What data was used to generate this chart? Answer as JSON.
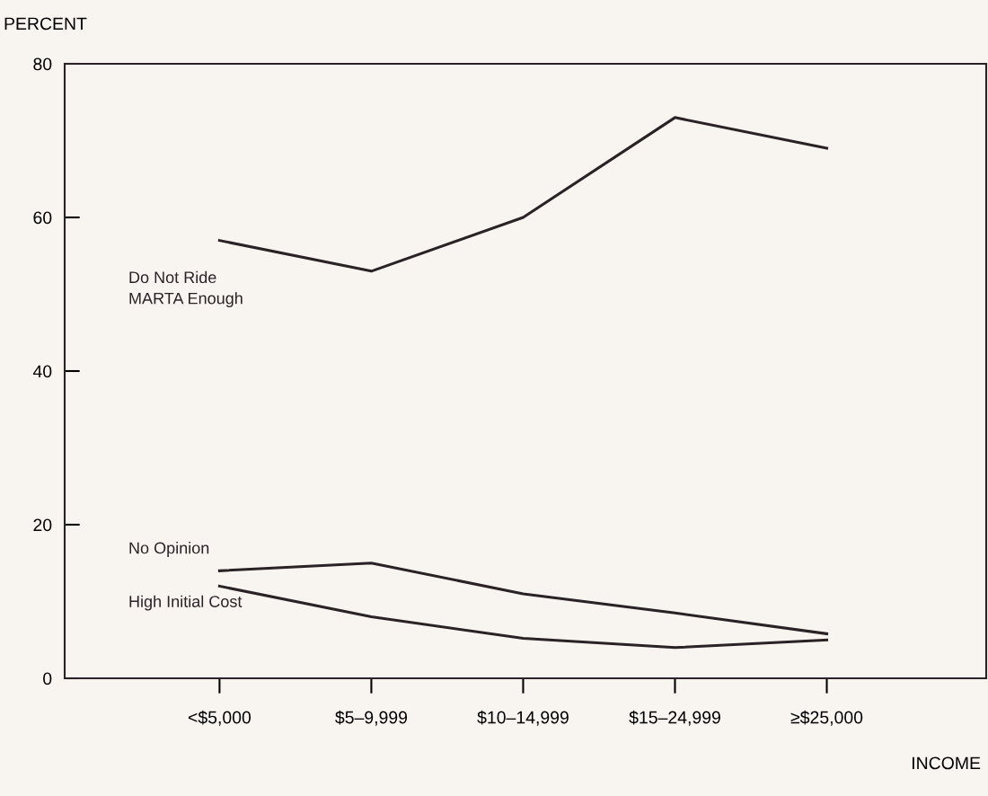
{
  "chart_data": {
    "type": "line",
    "xlabel": "INCOME",
    "ylabel": "PERCENT",
    "categories": [
      "<$5,000",
      "$5–9,999",
      "$10–14,999",
      "$15–24,999",
      "≥$25,000"
    ],
    "series": [
      {
        "name": "Do Not Ride\nMARTA Enough",
        "color": "#2a2226",
        "values": [
          57,
          53,
          60,
          73,
          69
        ]
      },
      {
        "name": "No Opinion",
        "color": "#2a2226",
        "values": [
          14,
          15,
          11,
          8.5,
          5.8
        ]
      },
      {
        "name": "High Initial Cost",
        "color": "#2a2226",
        "values": [
          12,
          8,
          5.2,
          4,
          5
        ]
      }
    ],
    "ylim": [
      0,
      80
    ],
    "yticks": [
      0,
      20,
      40,
      60,
      80
    ],
    "grid": false,
    "legend": false,
    "marker": "none",
    "line_style": "solid"
  }
}
